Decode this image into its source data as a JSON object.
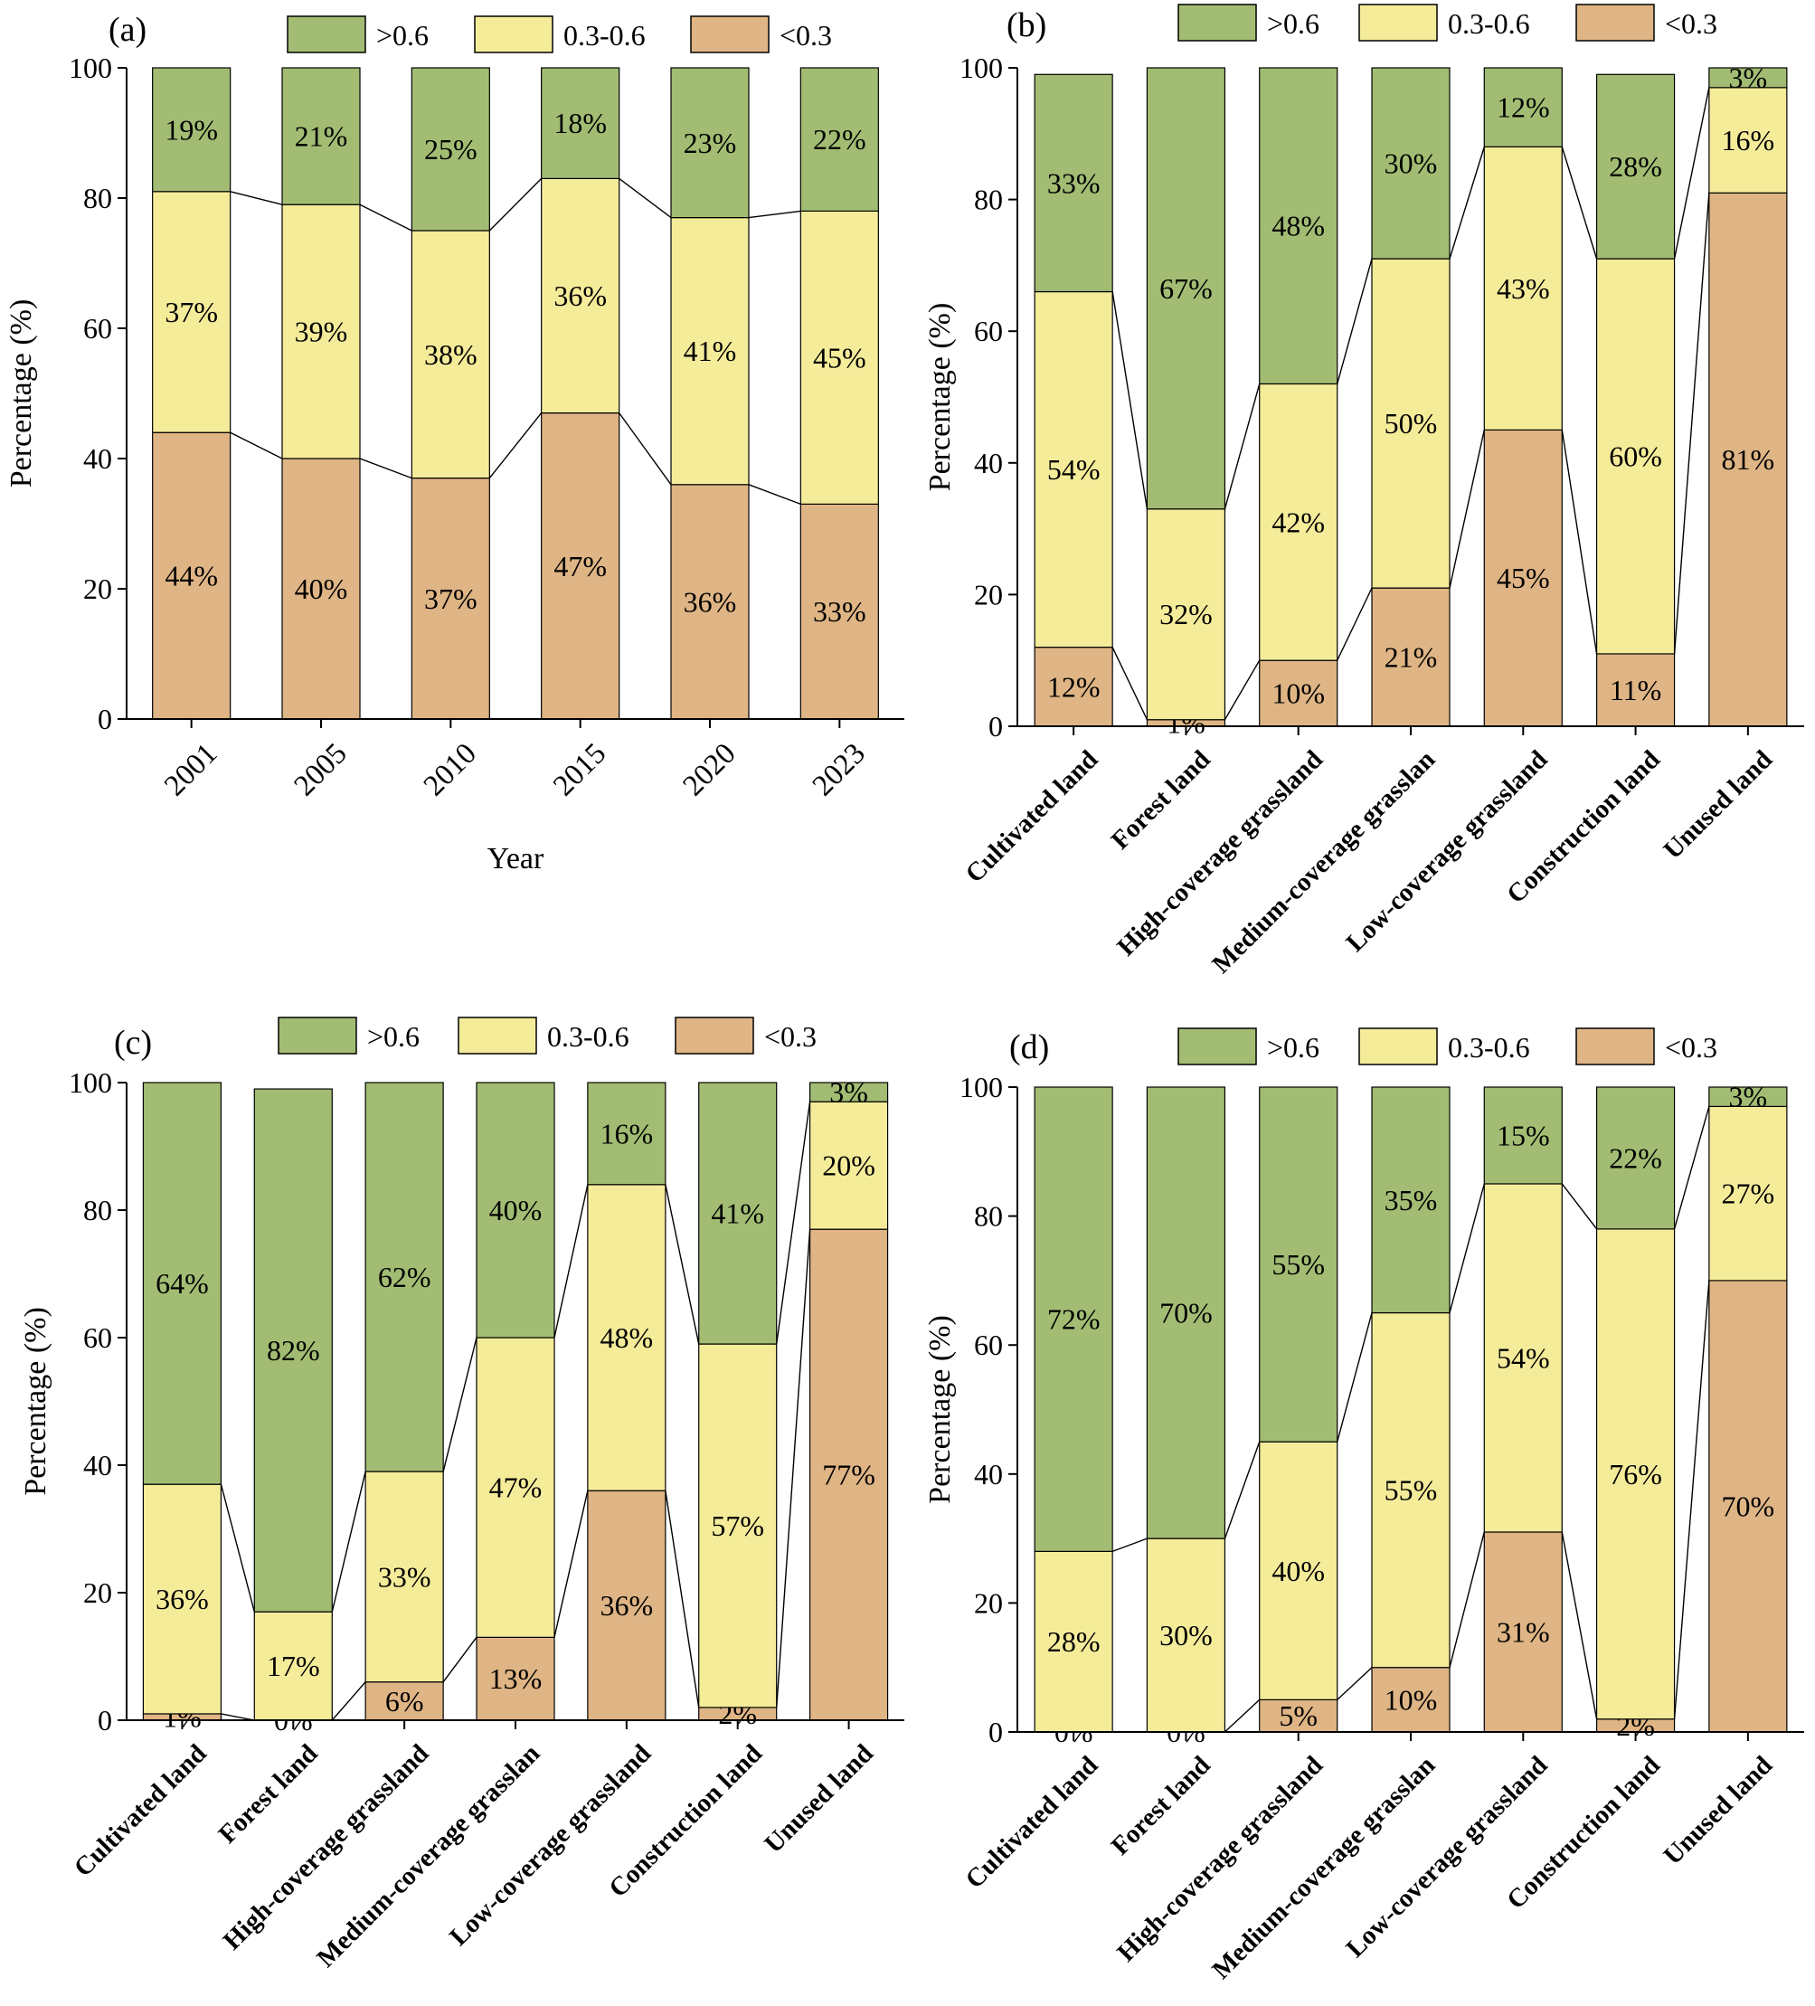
{
  "colors": {
    "high": "#a2bd73",
    "mid": "#f5ec9a",
    "low": "#dfb585",
    "axis": "#000000"
  },
  "legend": [
    {
      "key": "high",
      "label": ">0.6"
    },
    {
      "key": "mid",
      "label": "0.3-0.6"
    },
    {
      "key": "low",
      "label": "<0.3"
    }
  ],
  "chart_data": [
    {
      "panel": "(a)",
      "type": "bar",
      "stacked": true,
      "xlabel": "Year",
      "ylabel": "Percentage (%)",
      "ylim": [
        0,
        100
      ],
      "yticks": [
        "0",
        "20",
        "40",
        "60",
        "80",
        "100"
      ],
      "categories": [
        "2001",
        "2005",
        "2010",
        "2015",
        "2020",
        "2023"
      ],
      "series": [
        {
          "name": "<0.3",
          "key": "low",
          "values": [
            44,
            40,
            37,
            47,
            36,
            33
          ],
          "labels": [
            "44%",
            "40%",
            "37%",
            "47%",
            "36%",
            "33%"
          ]
        },
        {
          "name": "0.3-0.6",
          "key": "mid",
          "values": [
            37,
            39,
            38,
            36,
            41,
            45
          ],
          "labels": [
            "37%",
            "39%",
            "38%",
            "36%",
            "41%",
            "45%"
          ]
        },
        {
          "name": ">0.6",
          "key": "high",
          "values": [
            19,
            21,
            25,
            18,
            23,
            22
          ],
          "labels": [
            "19%",
            "21%",
            "25%",
            "18%",
            "23%",
            "22%"
          ]
        }
      ]
    },
    {
      "panel": "(b)",
      "type": "bar",
      "stacked": true,
      "xlabel": "",
      "ylabel": "Percentage (%)",
      "ylim": [
        0,
        100
      ],
      "yticks": [
        "0",
        "20",
        "40",
        "60",
        "80",
        "100"
      ],
      "categories": [
        "Cultivated land",
        "Forest land",
        "High-coverage grassland",
        "Medium-coverage grasslan",
        "Low-coverage grassland",
        "Construction land",
        "Unused land"
      ],
      "series": [
        {
          "name": "<0.3",
          "key": "low",
          "values": [
            12,
            1,
            10,
            21,
            45,
            11,
            81
          ],
          "labels": [
            "12%",
            "1%",
            "10%",
            "21%",
            "45%",
            "11%",
            "81%"
          ]
        },
        {
          "name": "0.3-0.6",
          "key": "mid",
          "values": [
            54,
            32,
            42,
            50,
            43,
            60,
            16
          ],
          "labels": [
            "54%",
            "32%",
            "42%",
            "50%",
            "43%",
            "60%",
            "16%"
          ]
        },
        {
          "name": ">0.6",
          "key": "high",
          "values": [
            33,
            67,
            48,
            30,
            12,
            28,
            3
          ],
          "labels": [
            "33%",
            "67%",
            "48%",
            "30%",
            "12%",
            "28%",
            "3%"
          ]
        }
      ]
    },
    {
      "panel": "(c)",
      "type": "bar",
      "stacked": true,
      "xlabel": "",
      "ylabel": "Percentage (%)",
      "ylim": [
        0,
        100
      ],
      "yticks": [
        "0",
        "20",
        "40",
        "60",
        "80",
        "100"
      ],
      "categories": [
        "Cultivated land",
        "Forest land",
        "High-coverage grassland",
        "Medium-coverage grasslan",
        "Low-coverage grassland",
        "Construction land",
        "Unused land"
      ],
      "series": [
        {
          "name": "<0.3",
          "key": "low",
          "values": [
            1,
            0,
            6,
            13,
            36,
            2,
            77
          ],
          "labels": [
            "1%",
            "0%",
            "6%",
            "13%",
            "36%",
            "2%",
            "77%"
          ]
        },
        {
          "name": "0.3-0.6",
          "key": "mid",
          "values": [
            36,
            17,
            33,
            47,
            48,
            57,
            20
          ],
          "labels": [
            "36%",
            "17%",
            "33%",
            "47%",
            "48%",
            "57%",
            "20%"
          ]
        },
        {
          "name": ">0.6",
          "key": "high",
          "values": [
            64,
            82,
            62,
            40,
            16,
            41,
            3
          ],
          "labels": [
            "64%",
            "82%",
            "62%",
            "40%",
            "16%",
            "41%",
            "3%"
          ]
        }
      ]
    },
    {
      "panel": "(d)",
      "type": "bar",
      "stacked": true,
      "xlabel": "",
      "ylabel": "Percentage (%)",
      "ylim": [
        0,
        100
      ],
      "yticks": [
        "0",
        "20",
        "40",
        "60",
        "80",
        "100"
      ],
      "categories": [
        "Cultivated land",
        "Forest land",
        "High-coverage grassland",
        "Medium-coverage grasslan",
        "Low-coverage grassland",
        "Construction land",
        "Unused land"
      ],
      "series": [
        {
          "name": "<0.3",
          "key": "low",
          "values": [
            0,
            0,
            5,
            10,
            31,
            2,
            70
          ],
          "labels": [
            "0%",
            "0%",
            "5%",
            "10%",
            "31%",
            "2%",
            "70%"
          ]
        },
        {
          "name": "0.3-0.6",
          "key": "mid",
          "values": [
            28,
            30,
            40,
            55,
            54,
            76,
            27
          ],
          "labels": [
            "28%",
            "30%",
            "40%",
            "55%",
            "54%",
            "76%",
            "27%"
          ]
        },
        {
          "name": ">0.6",
          "key": "high",
          "values": [
            72,
            70,
            55,
            35,
            15,
            22,
            3
          ],
          "labels": [
            "72%",
            "70%",
            "55%",
            "35%",
            "15%",
            "22%",
            "3%"
          ]
        }
      ]
    }
  ]
}
